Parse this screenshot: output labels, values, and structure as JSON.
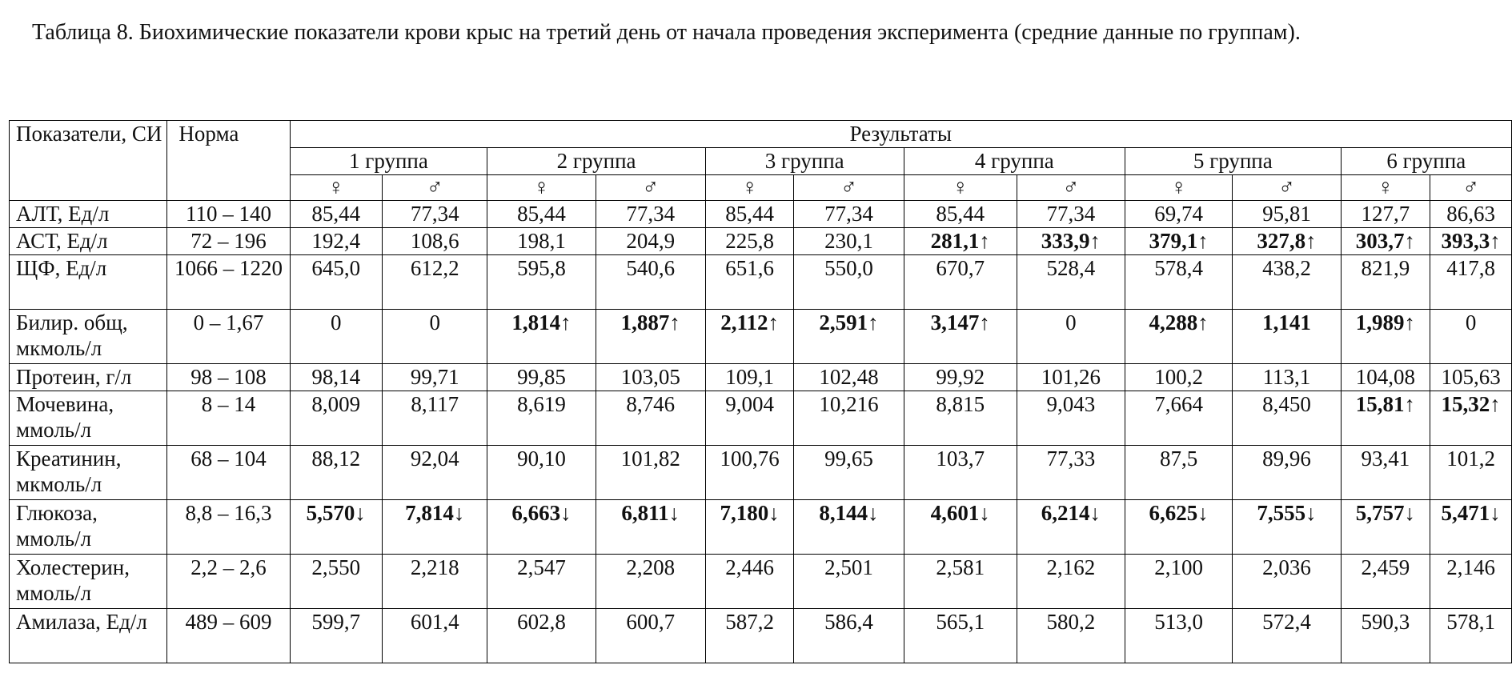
{
  "caption": "Таблица 8. Биохимические показатели крови крыс на третий день от начала проведения эксперимента (средние данные по группам).",
  "table": {
    "header": {
      "param": "Показатели, СИ",
      "norm": "Норма",
      "results": "Результаты",
      "groups": [
        "1 группа",
        "2 группа",
        "3 группа",
        "4 группа",
        "5 группа",
        "6 группа"
      ],
      "female": "♀",
      "male": "♂"
    },
    "rows": [
      {
        "param": "АЛТ, Ед/л",
        "norm": "110 – 140",
        "values": [
          {
            "v": "85,44"
          },
          {
            "v": "77,34"
          },
          {
            "v": "85,44"
          },
          {
            "v": "77,34"
          },
          {
            "v": "85,44"
          },
          {
            "v": "77,34"
          },
          {
            "v": "85,44"
          },
          {
            "v": "77,34"
          },
          {
            "v": "69,74"
          },
          {
            "v": "95,81"
          },
          {
            "v": "127,7"
          },
          {
            "v": "86,63"
          }
        ]
      },
      {
        "param": "АСТ, Ед/л",
        "norm": "72 – 196",
        "values": [
          {
            "v": "192,4"
          },
          {
            "v": "108,6"
          },
          {
            "v": "198,1"
          },
          {
            "v": "204,9"
          },
          {
            "v": "225,8"
          },
          {
            "v": "230,1"
          },
          {
            "v": "281,1↑",
            "bold": true
          },
          {
            "v": "333,9↑",
            "bold": true
          },
          {
            "v": "379,1↑",
            "bold": true
          },
          {
            "v": "327,8↑",
            "bold": true
          },
          {
            "v": "303,7↑",
            "bold": true
          },
          {
            "v": "393,3↑",
            "bold": true
          }
        ]
      },
      {
        "param": "ЩФ, Ед/л",
        "norm": "1066 – 1220",
        "values": [
          {
            "v": "645,0"
          },
          {
            "v": "612,2"
          },
          {
            "v": "595,8"
          },
          {
            "v": "540,6"
          },
          {
            "v": "651,6"
          },
          {
            "v": "550,0"
          },
          {
            "v": "670,7"
          },
          {
            "v": "528,4"
          },
          {
            "v": "578,4"
          },
          {
            "v": "438,2"
          },
          {
            "v": "821,9"
          },
          {
            "v": "417,8"
          }
        ]
      },
      {
        "param": "Билир. общ, мкмоль/л",
        "norm": "0 – 1,67",
        "values": [
          {
            "v": "0"
          },
          {
            "v": "0"
          },
          {
            "v": "1,814↑",
            "bold": true
          },
          {
            "v": "1,887↑",
            "bold": true
          },
          {
            "v": "2,112↑",
            "bold": true
          },
          {
            "v": "2,591↑",
            "bold": true
          },
          {
            "v": "3,147↑",
            "bold": true
          },
          {
            "v": "0"
          },
          {
            "v": "4,288↑",
            "bold": true
          },
          {
            "v": "1,141",
            "bold": true
          },
          {
            "v": "1,989↑",
            "bold": true
          },
          {
            "v": "0"
          }
        ]
      },
      {
        "param": "Протеин, г/л",
        "norm": "98 – 108",
        "values": [
          {
            "v": "98,14"
          },
          {
            "v": "99,71"
          },
          {
            "v": "99,85"
          },
          {
            "v": "103,05"
          },
          {
            "v": "109,1"
          },
          {
            "v": "102,48"
          },
          {
            "v": "99,92"
          },
          {
            "v": "101,26"
          },
          {
            "v": "100,2"
          },
          {
            "v": "113,1"
          },
          {
            "v": "104,08"
          },
          {
            "v": "105,63"
          }
        ]
      },
      {
        "param": "Мочевина, ммоль/л",
        "norm": "8 – 14",
        "values": [
          {
            "v": "8,009"
          },
          {
            "v": "8,117"
          },
          {
            "v": "8,619"
          },
          {
            "v": "8,746"
          },
          {
            "v": "9,004"
          },
          {
            "v": "10,216"
          },
          {
            "v": "8,815"
          },
          {
            "v": "9,043"
          },
          {
            "v": "7,664"
          },
          {
            "v": "8,450"
          },
          {
            "v": "15,81↑",
            "bold": true
          },
          {
            "v": "15,32↑",
            "bold": true
          }
        ]
      },
      {
        "param": "Креатинин, мкмоль/л",
        "norm": "68 – 104",
        "values": [
          {
            "v": "88,12"
          },
          {
            "v": "92,04"
          },
          {
            "v": "90,10"
          },
          {
            "v": "101,82"
          },
          {
            "v": "100,76"
          },
          {
            "v": "99,65"
          },
          {
            "v": "103,7"
          },
          {
            "v": "77,33"
          },
          {
            "v": "87,5"
          },
          {
            "v": "89,96"
          },
          {
            "v": "93,41"
          },
          {
            "v": "101,2"
          }
        ]
      },
      {
        "param": "Глюкоза, ммоль/л",
        "norm": "8,8 – 16,3",
        "values": [
          {
            "v": "5,570↓",
            "bold": true
          },
          {
            "v": "7,814↓",
            "bold": true
          },
          {
            "v": "6,663↓",
            "bold": true
          },
          {
            "v": "6,811↓",
            "bold": true
          },
          {
            "v": "7,180↓",
            "bold": true
          },
          {
            "v": "8,144↓",
            "bold": true
          },
          {
            "v": "4,601↓",
            "bold": true
          },
          {
            "v": "6,214↓",
            "bold": true
          },
          {
            "v": "6,625↓",
            "bold": true
          },
          {
            "v": "7,555↓",
            "bold": true
          },
          {
            "v": "5,757↓",
            "bold": true
          },
          {
            "v": "5,471↓",
            "bold": true
          }
        ]
      },
      {
        "param": "Холестерин, ммоль/л",
        "norm": "2,2 – 2,6",
        "values": [
          {
            "v": "2,550"
          },
          {
            "v": "2,218"
          },
          {
            "v": "2,547"
          },
          {
            "v": "2,208"
          },
          {
            "v": "2,446"
          },
          {
            "v": "2,501"
          },
          {
            "v": "2,581"
          },
          {
            "v": "2,162"
          },
          {
            "v": "2,100"
          },
          {
            "v": "2,036"
          },
          {
            "v": "2,459"
          },
          {
            "v": "2,146"
          }
        ]
      },
      {
        "param": "Амилаза, Ед/л",
        "norm": "489 – 609",
        "values": [
          {
            "v": "599,7"
          },
          {
            "v": "601,4"
          },
          {
            "v": "602,8"
          },
          {
            "v": "600,7"
          },
          {
            "v": "587,2"
          },
          {
            "v": "586,4"
          },
          {
            "v": "565,1"
          },
          {
            "v": "580,2"
          },
          {
            "v": "513,0"
          },
          {
            "v": "572,4"
          },
          {
            "v": "590,3"
          },
          {
            "v": "578,1"
          }
        ]
      }
    ]
  }
}
